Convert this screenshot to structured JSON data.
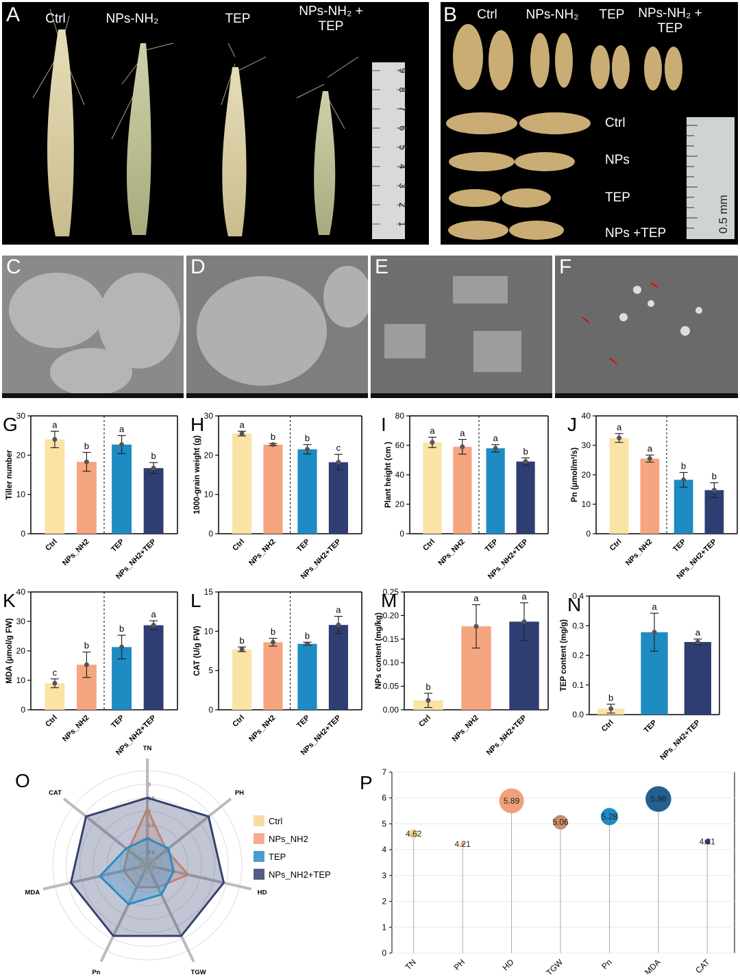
{
  "panels": {
    "A": {
      "letter": "A",
      "labels": [
        "Ctrl",
        "NPs-NH₂",
        "TEP",
        "NPs-NH₂ +\nTEP"
      ],
      "ruler_numbers": [
        "9",
        "8",
        "7",
        "6",
        "5",
        "4",
        "3",
        "2",
        "1"
      ]
    },
    "B": {
      "letter": "B",
      "top_labels": [
        "Ctrl",
        "NPs-NH₂",
        "TEP",
        "NPs-NH₂ +\nTEP"
      ],
      "row_labels": [
        "Ctrl",
        "NPs",
        "TEP",
        "NPs +TEP"
      ],
      "scale_text": "0.5 mm"
    },
    "C": {
      "letter": "C"
    },
    "D": {
      "letter": "D"
    },
    "E": {
      "letter": "E"
    },
    "F": {
      "letter": "F"
    }
  },
  "colors": {
    "ctrl": "#FBE3A6",
    "nps": "#F5A57F",
    "tep": "#1E8BC3",
    "combo": "#2E3E73",
    "radar_ctrl": "#F6D690",
    "radar_nps": "#F2A07A",
    "radar_tep": "#2B8CC4",
    "radar_combo": "#34426F"
  },
  "chart_data": [
    {
      "panel": "G",
      "type": "bar",
      "ylabel": "Tiller number",
      "ylim": [
        0,
        30
      ],
      "yticks": [
        0,
        10,
        20,
        30
      ],
      "categories": [
        "Ctrl",
        "NPs_NH2",
        "TEP",
        "NPs_NH2+TEP"
      ],
      "values": [
        24,
        18.3,
        22.7,
        16.7
      ],
      "errors": [
        2.1,
        2.4,
        2.3,
        1.4
      ],
      "letters": [
        "a",
        "b",
        "a",
        "b"
      ],
      "divider": true
    },
    {
      "panel": "H",
      "type": "bar",
      "ylabel": "1000-grain weight (g)",
      "ylim": [
        0,
        30
      ],
      "yticks": [
        0,
        10,
        20,
        30
      ],
      "categories": [
        "Ctrl",
        "NPs_NH2",
        "TEP",
        "NPs_NH2+TEP"
      ],
      "values": [
        25.5,
        22.7,
        21.5,
        18.2
      ],
      "errors": [
        0.6,
        0.3,
        1.2,
        2.0
      ],
      "letters": [
        "a",
        "b",
        "b",
        "c"
      ],
      "divider": true
    },
    {
      "panel": "I",
      "type": "bar",
      "ylabel": "Plant height (cm )",
      "ylim": [
        0,
        80
      ],
      "yticks": [
        0,
        20,
        40,
        60,
        80
      ],
      "categories": [
        "Ctrl",
        "NPs_NH2",
        "TEP",
        "NPs_NH2+TEP"
      ],
      "values": [
        62,
        59,
        58,
        49
      ],
      "errors": [
        3.5,
        5.0,
        2.5,
        2.5
      ],
      "letters": [
        "a",
        "a",
        "a",
        "b"
      ],
      "divider": true
    },
    {
      "panel": "J",
      "type": "bar",
      "ylabel": "Pn (μmol/m²/s)",
      "ylim": [
        0,
        40
      ],
      "yticks": [
        0,
        10,
        20,
        30,
        40
      ],
      "categories": [
        "Ctrl",
        "NPs_NH2",
        "TEP",
        "NPs_NH2+TEP"
      ],
      "values": [
        32.5,
        25.5,
        18.3,
        14.8
      ],
      "errors": [
        1.5,
        1.2,
        2.5,
        2.5
      ],
      "letters": [
        "a",
        "a",
        "b",
        "b"
      ],
      "divider": true
    },
    {
      "panel": "K",
      "type": "bar",
      "ylabel": "MDA (μmol/g FW)",
      "ylim": [
        0,
        40
      ],
      "yticks": [
        0,
        10,
        20,
        30,
        40
      ],
      "categories": [
        "Ctrl",
        "NPs_NH2",
        "TEP",
        "NPs_NH2+TEP"
      ],
      "values": [
        9,
        15.3,
        21.3,
        28.7
      ],
      "errors": [
        1.5,
        4.3,
        4.0,
        1.5
      ],
      "letters": [
        "c",
        "b",
        "b",
        "a"
      ],
      "divider": true
    },
    {
      "panel": "L",
      "type": "bar",
      "ylabel": "CAT (U/g FW)",
      "ylim": [
        0,
        15
      ],
      "yticks": [
        0,
        5,
        10,
        15
      ],
      "categories": [
        "Ctrl",
        "NPs_NH2",
        "TEP",
        "NPs_NH2+TEP"
      ],
      "values": [
        7.7,
        8.6,
        8.4,
        10.8
      ],
      "errors": [
        0.3,
        0.5,
        0.2,
        1.1
      ],
      "letters": [
        "b",
        "b",
        "b",
        "a"
      ],
      "divider": true
    },
    {
      "panel": "M",
      "type": "bar",
      "ylabel": "NPs content (mg/kg)",
      "ylim": [
        0,
        0.25
      ],
      "yticks": [
        0,
        0.05,
        0.1,
        0.15,
        0.2,
        0.25
      ],
      "ytick_labels": [
        "0.00",
        "0.05",
        "0.10",
        "0.15",
        "0.20",
        "0.25"
      ],
      "categories": [
        "Ctrl",
        "NPs_NH2",
        "NPs_NH2+TEP"
      ],
      "values": [
        0.02,
        0.177,
        0.187
      ],
      "errors": [
        0.015,
        0.046,
        0.04
      ],
      "letters": [
        "b",
        "a",
        "a"
      ],
      "divider": false
    },
    {
      "panel": "N",
      "type": "bar",
      "ylabel": "TEP content (mg/g)",
      "ylim": [
        0,
        0.4
      ],
      "yticks": [
        0,
        0.1,
        0.2,
        0.3,
        0.4
      ],
      "ytick_labels": [
        "0.0",
        "0.1",
        "0.2",
        "0.3",
        "0.4"
      ],
      "categories": [
        "Ctrl",
        "TEP",
        "NPs_NH2+TEP"
      ],
      "values": [
        0.02,
        0.278,
        0.245
      ],
      "errors": [
        0.015,
        0.064,
        0.01
      ],
      "letters": [
        "b",
        "a",
        "a"
      ],
      "divider": false
    },
    {
      "panel": "O",
      "type": "radar",
      "axes": [
        "TN",
        "PH",
        "HD",
        "TGW",
        "Pn",
        "MDA",
        "CAT"
      ],
      "ticks": [
        "0.5",
        "1",
        "1.5",
        "2",
        "2.5",
        "3"
      ],
      "rmax": 3.5,
      "series": [
        {
          "name": "Ctrl",
          "values": [
            0.3,
            0.3,
            0.3,
            0.3,
            0.3,
            0.3,
            0.3
          ]
        },
        {
          "name": "NPs_NH2",
          "values": [
            2.1,
            0.9,
            1.55,
            0.9,
            0.9,
            0.9,
            0.9
          ]
        },
        {
          "name": "NPs_NH2+TEP",
          "values": [
            2.5,
            2.9,
            2.9,
            2.9,
            2.9,
            2.9,
            2.9
          ]
        },
        {
          "name": "TEP",
          "values": [
            1.0,
            1.0,
            1.0,
            1.2,
            1.6,
            1.8,
            1.0
          ]
        }
      ],
      "legend_order": [
        "Ctrl",
        "NPs_NH2",
        "TEP",
        "NPs_NH2+TEP"
      ]
    },
    {
      "panel": "P",
      "type": "lollipop",
      "ylim": [
        0,
        7
      ],
      "yticks": [
        0,
        1,
        2,
        3,
        4,
        5,
        6,
        7
      ],
      "categories": [
        "TN",
        "PH",
        "HD",
        "TGW",
        "Pn",
        "MDA",
        "CAT"
      ],
      "values": [
        4.62,
        4.21,
        5.89,
        5.06,
        5.28,
        5.96,
        4.31
      ],
      "value_labels": [
        "4.62",
        "4.21",
        "5.89",
        "5.06",
        "5.28",
        "5.96",
        "4.31"
      ]
    }
  ]
}
